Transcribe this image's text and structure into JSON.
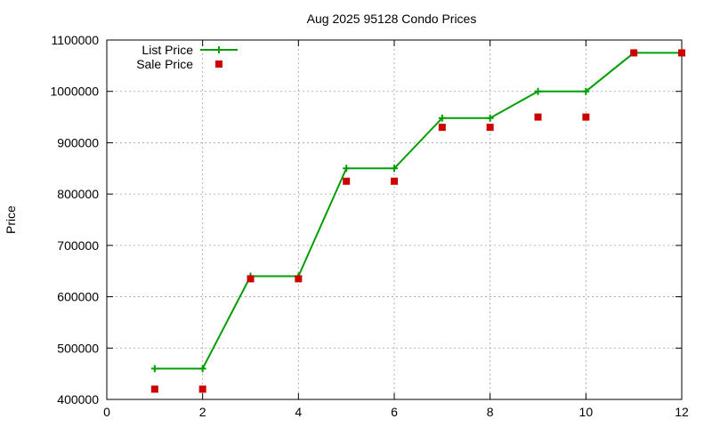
{
  "chart_data": {
    "type": "line",
    "title": "Aug 2025 95128 Condo Prices",
    "xlabel": "",
    "ylabel": "Price",
    "xlim": [
      0,
      12
    ],
    "ylim": [
      400000,
      1100000
    ],
    "xticks": [
      0,
      2,
      4,
      6,
      8,
      10,
      12
    ],
    "yticks": [
      400000,
      500000,
      600000,
      700000,
      800000,
      900000,
      1000000,
      1100000
    ],
    "grid": true,
    "legend_position": "top-left",
    "series": [
      {
        "name": "List Price",
        "style": "line-with-plus-markers",
        "color": "#009e00",
        "x": [
          1,
          2,
          3,
          4,
          5,
          6,
          7,
          8,
          9,
          10,
          11,
          12
        ],
        "y": [
          460000,
          460000,
          640000,
          640000,
          850000,
          850000,
          948000,
          948000,
          1000000,
          1000000,
          1075000,
          1075000
        ]
      },
      {
        "name": "Sale Price",
        "style": "square-markers",
        "color": "#cc0000",
        "x": [
          1,
          2,
          3,
          4,
          5,
          6,
          7,
          8,
          9,
          10,
          11,
          12
        ],
        "y": [
          420000,
          420000,
          635000,
          635000,
          825000,
          825000,
          930000,
          930000,
          950000,
          950000,
          1075000,
          1075000
        ]
      }
    ]
  }
}
